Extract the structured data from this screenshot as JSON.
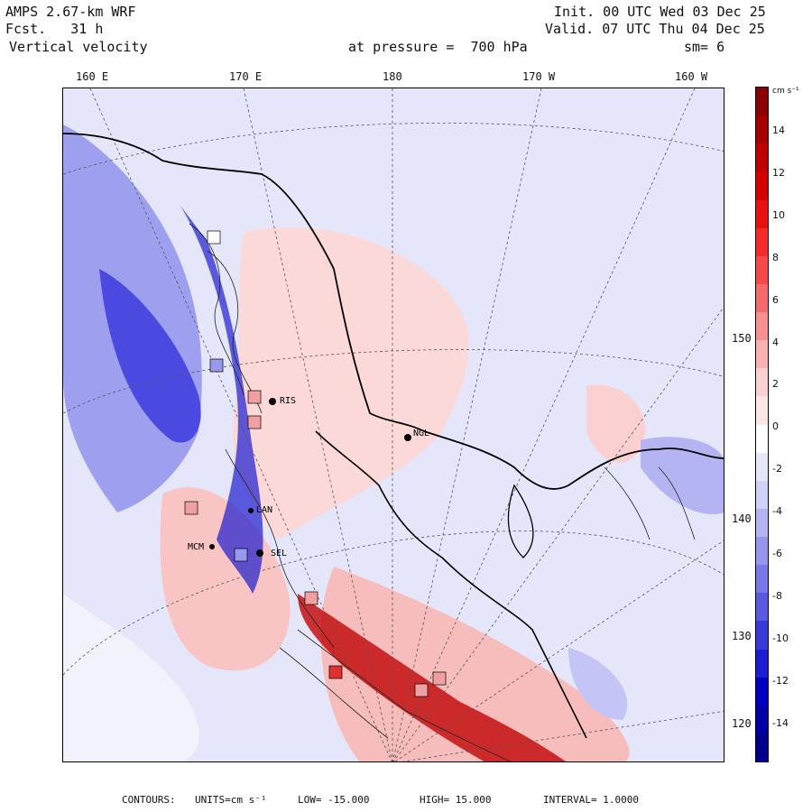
{
  "header": {
    "model": "AMPS 2.67-km WRF",
    "fcst": "Fcst.   31 h",
    "field": "Vertical velocity",
    "level": "at pressure =  700 hPa",
    "init": "Init. 00 UTC Wed 03 Dec 25",
    "valid": "Valid. 07 UTC Thu 04 Dec 25",
    "smooth": "sm= 6"
  },
  "top_longitudes": [
    "160 E",
    "170 E",
    "180",
    "170 W",
    "160 W"
  ],
  "right_longitudes": [
    "150 W",
    "140 W",
    "130 W",
    "120 W"
  ],
  "stations": [
    {
      "label": "NGL"
    },
    {
      "label": "LAN"
    },
    {
      "label": "SEL"
    },
    {
      "label": "RIS"
    },
    {
      "label": "MCM"
    }
  ],
  "colorbar": {
    "units": "cm s⁻¹",
    "ticks": [
      "14",
      "12",
      "10",
      "8",
      "6",
      "4",
      "2",
      "0",
      "-2",
      "-4",
      "-6",
      "-8",
      "-10",
      "-12",
      "-14"
    ],
    "colors": [
      "#8b0000",
      "#a50000",
      "#bf0000",
      "#d40000",
      "#e81010",
      "#f52a2a",
      "#f54848",
      "#f56a6a",
      "#f79090",
      "#f9b2b2",
      "#fbd0d0",
      "#fde6e6",
      "#ffffff",
      "#e6e6fb",
      "#d0d0f8",
      "#b4b4f3",
      "#9696ee",
      "#7878e8",
      "#5a5ae0",
      "#3a3ad8",
      "#1c1cd0",
      "#0000c0",
      "#0000a4",
      "#00008a"
    ]
  },
  "footer": {
    "contours": "CONTOURS:",
    "units": "UNITS=cm s⁻¹",
    "low": "LOW= -15.000",
    "high": "HIGH= 15.000",
    "interval": "INTERVAL= 1.0000"
  }
}
